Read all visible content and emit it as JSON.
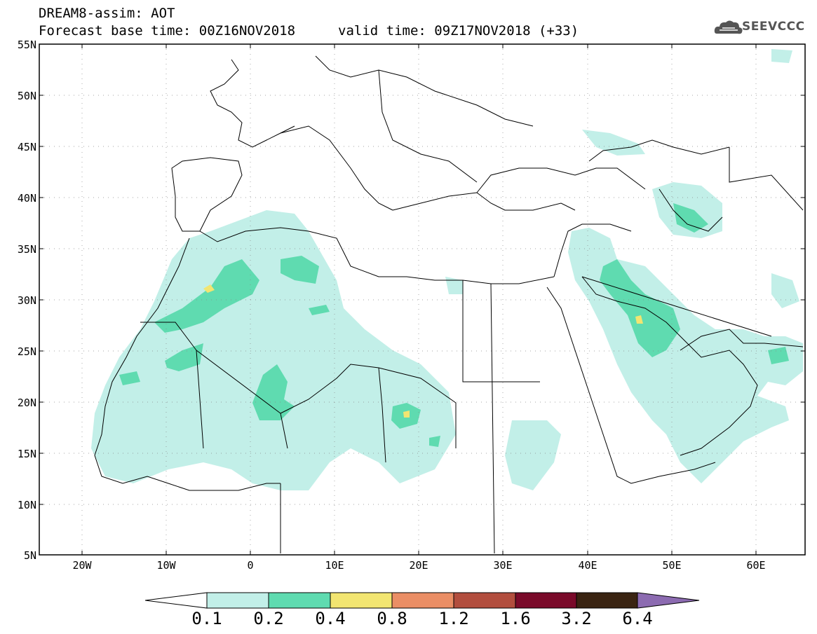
{
  "header": {
    "title": "DREAM8-assim: AOT",
    "base_time": "Forecast base time: 00Z16NOV2018",
    "valid_time": "valid time: 09Z17NOV2018 (+33)",
    "logo_text": "SEEVCCC"
  },
  "map": {
    "lat_range": [
      5,
      55
    ],
    "lon_range": [
      -25,
      65
    ],
    "lat_ticks": [
      "55N",
      "50N",
      "45N",
      "40N",
      "35N",
      "30N",
      "25N",
      "20N",
      "15N",
      "10N",
      "5N"
    ],
    "lon_ticks": [
      "20W",
      "10W",
      "0",
      "10E",
      "20E",
      "30E",
      "40E",
      "50E",
      "60E"
    ]
  },
  "colorbar": {
    "labels": [
      "0.1",
      "0.2",
      "0.4",
      "0.8",
      "1.2",
      "1.6",
      "3.2",
      "6.4"
    ],
    "colors": [
      "#ffffff",
      "#c2efe8",
      "#5fdbb0",
      "#f2e571",
      "#ea8e65",
      "#b24e3e",
      "#7a0a2a",
      "#3a2412",
      "#8c6bb1"
    ]
  }
}
